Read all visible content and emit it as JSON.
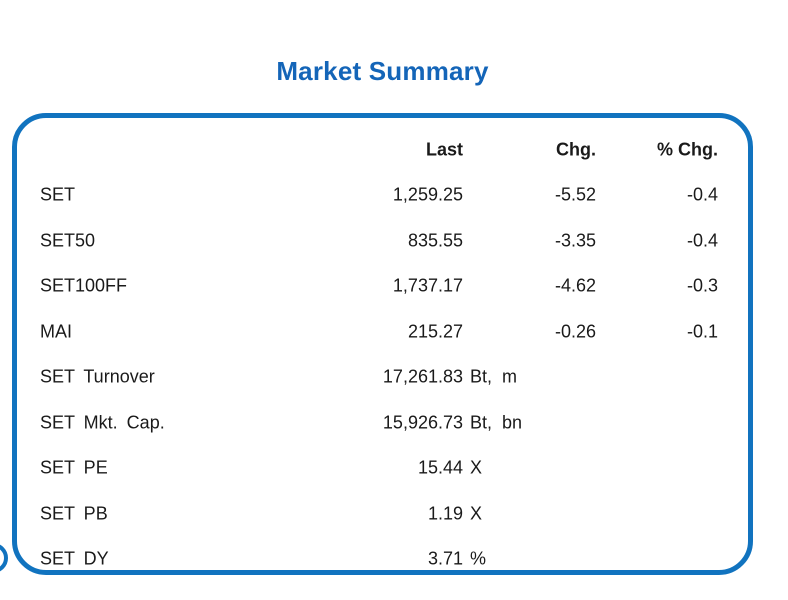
{
  "page": {
    "title": "Market Summary"
  },
  "colors": {
    "accent_blue": "#1173BF",
    "title_blue": "#1465B8",
    "text": "#1A1A1A"
  },
  "table": {
    "headers": {
      "last": "Last",
      "chg": "Chg.",
      "pct_chg": "% Chg."
    },
    "rows": [
      {
        "label": "SET",
        "last": "1,259.25",
        "unit": "",
        "chg": "-5.52",
        "pct_chg": "-0.4"
      },
      {
        "label": "SET50",
        "last": "835.55",
        "unit": "",
        "chg": "-3.35",
        "pct_chg": "-0.4"
      },
      {
        "label": "SET100FF",
        "last": "1,737.17",
        "unit": "",
        "chg": "-4.62",
        "pct_chg": "-0.3"
      },
      {
        "label": "MAI",
        "last": "215.27",
        "unit": "",
        "chg": "-0.26",
        "pct_chg": "-0.1"
      },
      {
        "label": "SET Turnover",
        "last": "17,261.83",
        "unit": "Bt, m",
        "chg": "",
        "pct_chg": ""
      },
      {
        "label": "SET Mkt. Cap.",
        "last": "15,926.73",
        "unit": "Bt, bn",
        "chg": "",
        "pct_chg": ""
      },
      {
        "label": "SET PE",
        "last": "15.44",
        "unit": "X",
        "chg": "",
        "pct_chg": ""
      },
      {
        "label": "SET PB",
        "last": "1.19",
        "unit": "X",
        "chg": "",
        "pct_chg": ""
      },
      {
        "label": "SET DY",
        "last": "3.71",
        "unit": "%",
        "chg": "",
        "pct_chg": ""
      }
    ]
  }
}
